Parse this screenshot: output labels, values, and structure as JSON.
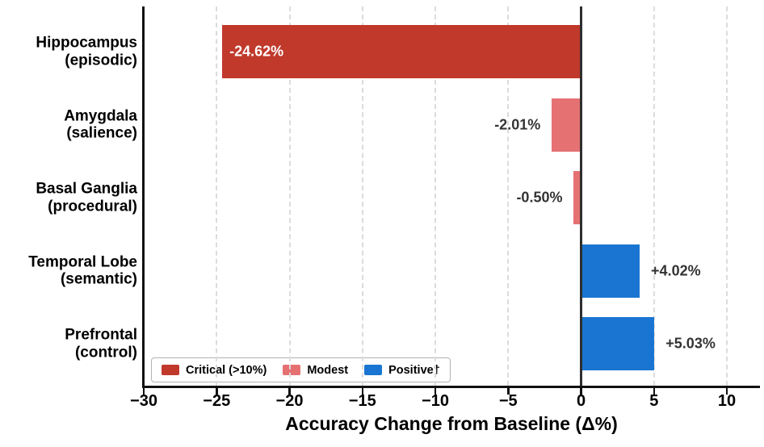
{
  "chart_data": {
    "type": "bar",
    "orientation": "horizontal",
    "xlabel": "Accuracy Change from Baseline (Δ%)",
    "xlim": [
      -30.1,
      12.3
    ],
    "grid": "vertical dashed gridlines, no top/right spines",
    "zero_line": true,
    "legend_position": "lower left",
    "categories": [
      [
        "Hippocampus",
        "(episodic)"
      ],
      [
        "Amygdala",
        "(salience)"
      ],
      [
        "Basal Ganglia",
        "(procedural)"
      ],
      [
        "Temporal Lobe",
        "(semantic)"
      ],
      [
        "Prefrontal",
        "(control)"
      ]
    ],
    "values": [
      -24.62,
      -2.01,
      -0.5,
      4.02,
      5.03
    ],
    "value_labels": [
      "-24.62%",
      "-2.01%",
      "-0.50%",
      "+4.02%",
      "+5.03%"
    ],
    "bar_classes": [
      "critical",
      "modest",
      "modest",
      "positive",
      "positive"
    ],
    "xticks": [
      -30,
      -25,
      -20,
      -15,
      -10,
      -5,
      0,
      5,
      10
    ],
    "xtick_labels": [
      "−30",
      "−25",
      "−20",
      "−15",
      "−10",
      "−5",
      "0",
      "5",
      "10"
    ],
    "legend": [
      {
        "label": "Critical (>10%)",
        "class": "critical"
      },
      {
        "label": "Modest",
        "class": "modest"
      },
      {
        "label": "Positive†",
        "class": "positive"
      }
    ],
    "colors": {
      "critical": "#c0392b",
      "modest": "#e57173",
      "positive": "#1a75d2",
      "zero_line": "#2e2e2e",
      "gridline": "#dcdcdc",
      "axis": "#111111",
      "value_label": "#333333",
      "value_label_inside": "#ffffff",
      "background": "#ffffff"
    }
  }
}
